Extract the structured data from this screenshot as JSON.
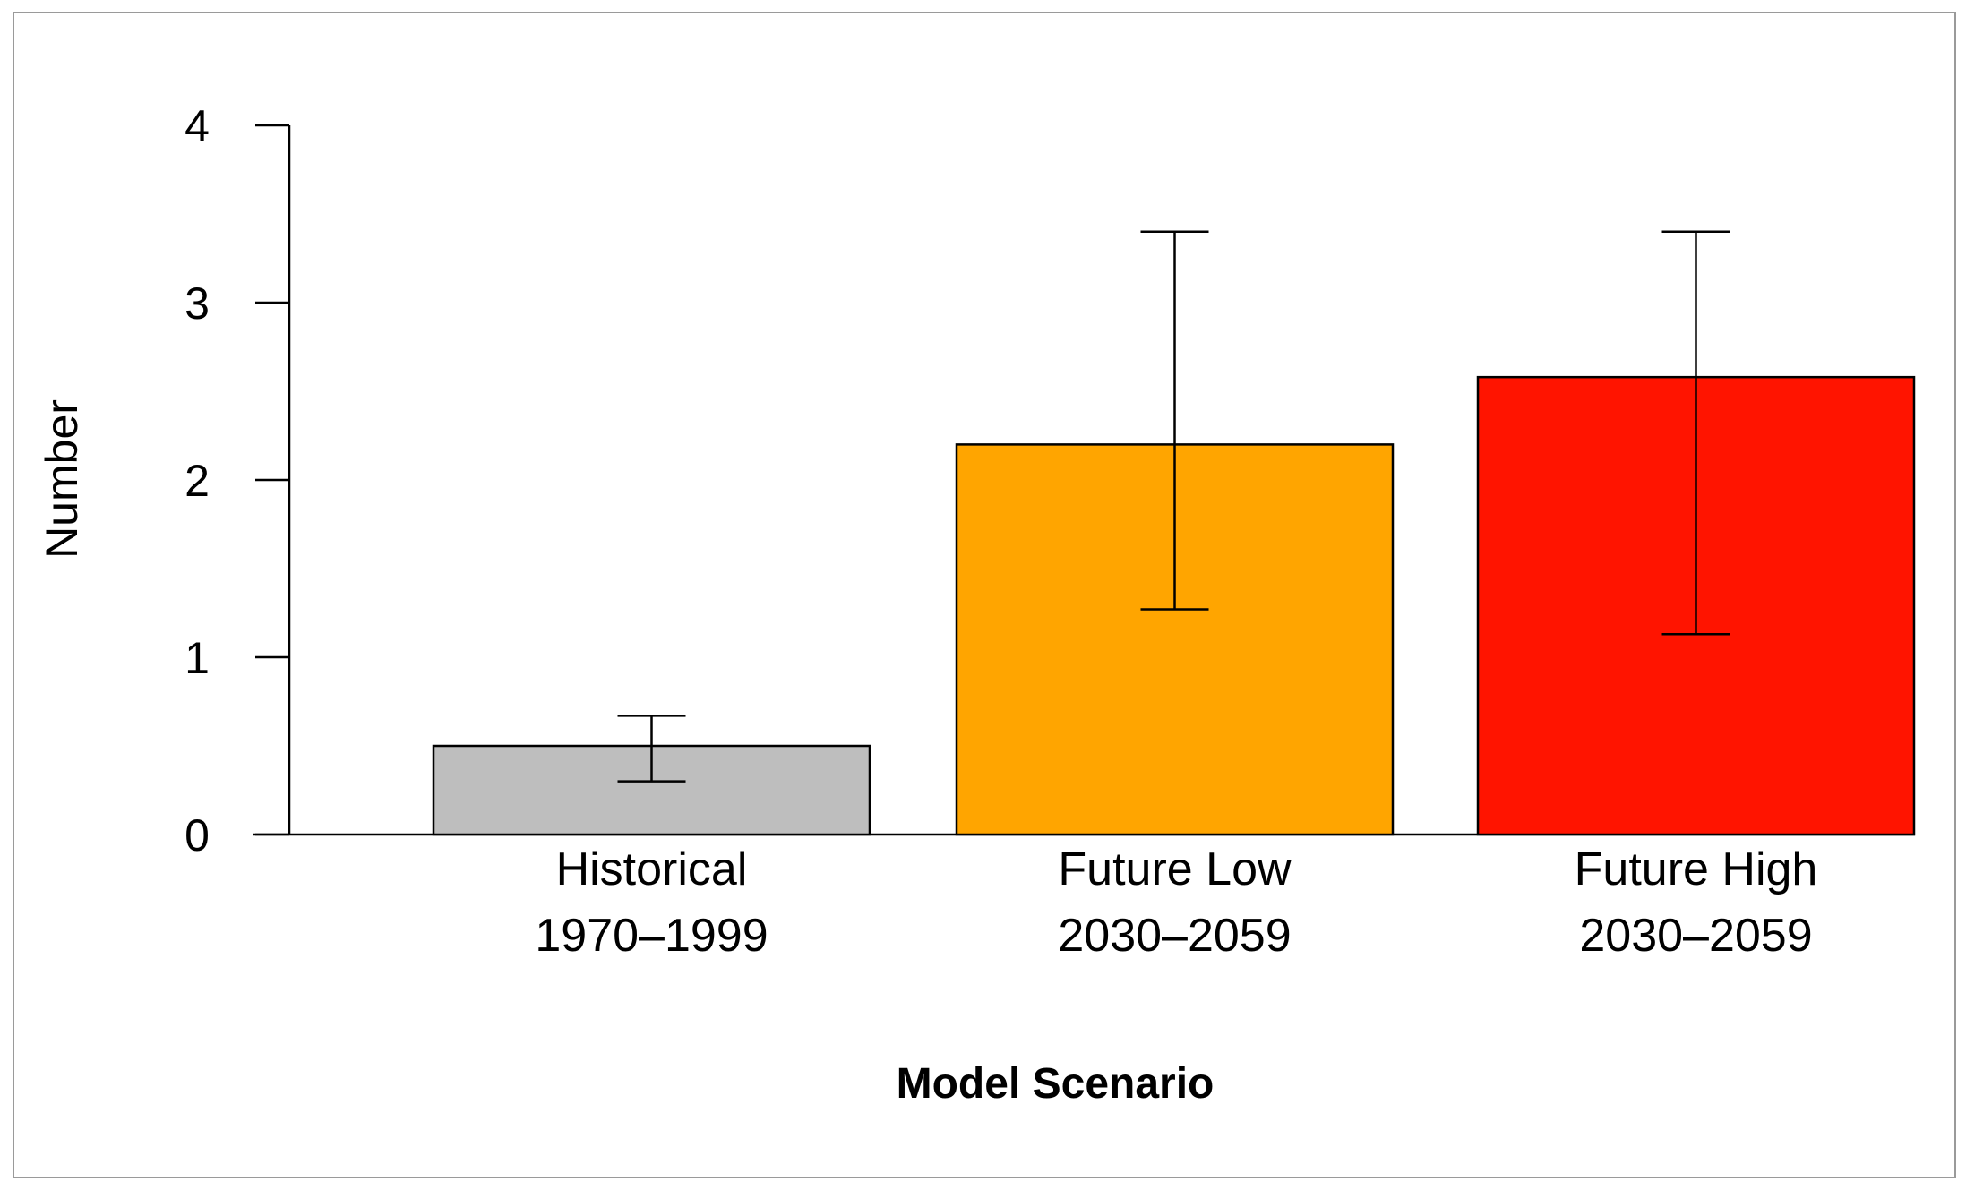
{
  "chart_data": {
    "type": "bar",
    "title": "",
    "xlabel": "Model Scenario",
    "ylabel": "Number",
    "ylim": [
      0,
      4
    ],
    "yticks": [
      0,
      1,
      2,
      3,
      4
    ],
    "ytick_labels": [
      "0",
      "1",
      "2",
      "3",
      "4"
    ],
    "grid": false,
    "legend": "none",
    "categories": [
      {
        "line1": "Historical",
        "line2": "1970–1999"
      },
      {
        "line1": "Future Low",
        "line2": "2030–2059"
      },
      {
        "line1": "Future High",
        "line2": "2030–2059"
      }
    ],
    "values": [
      0.5,
      2.2,
      2.58
    ],
    "error_low": [
      0.3,
      1.27,
      1.13
    ],
    "error_high": [
      0.67,
      3.4,
      3.4
    ],
    "colors": [
      "#bebebe",
      "#ffa500",
      "#ff1400"
    ]
  }
}
